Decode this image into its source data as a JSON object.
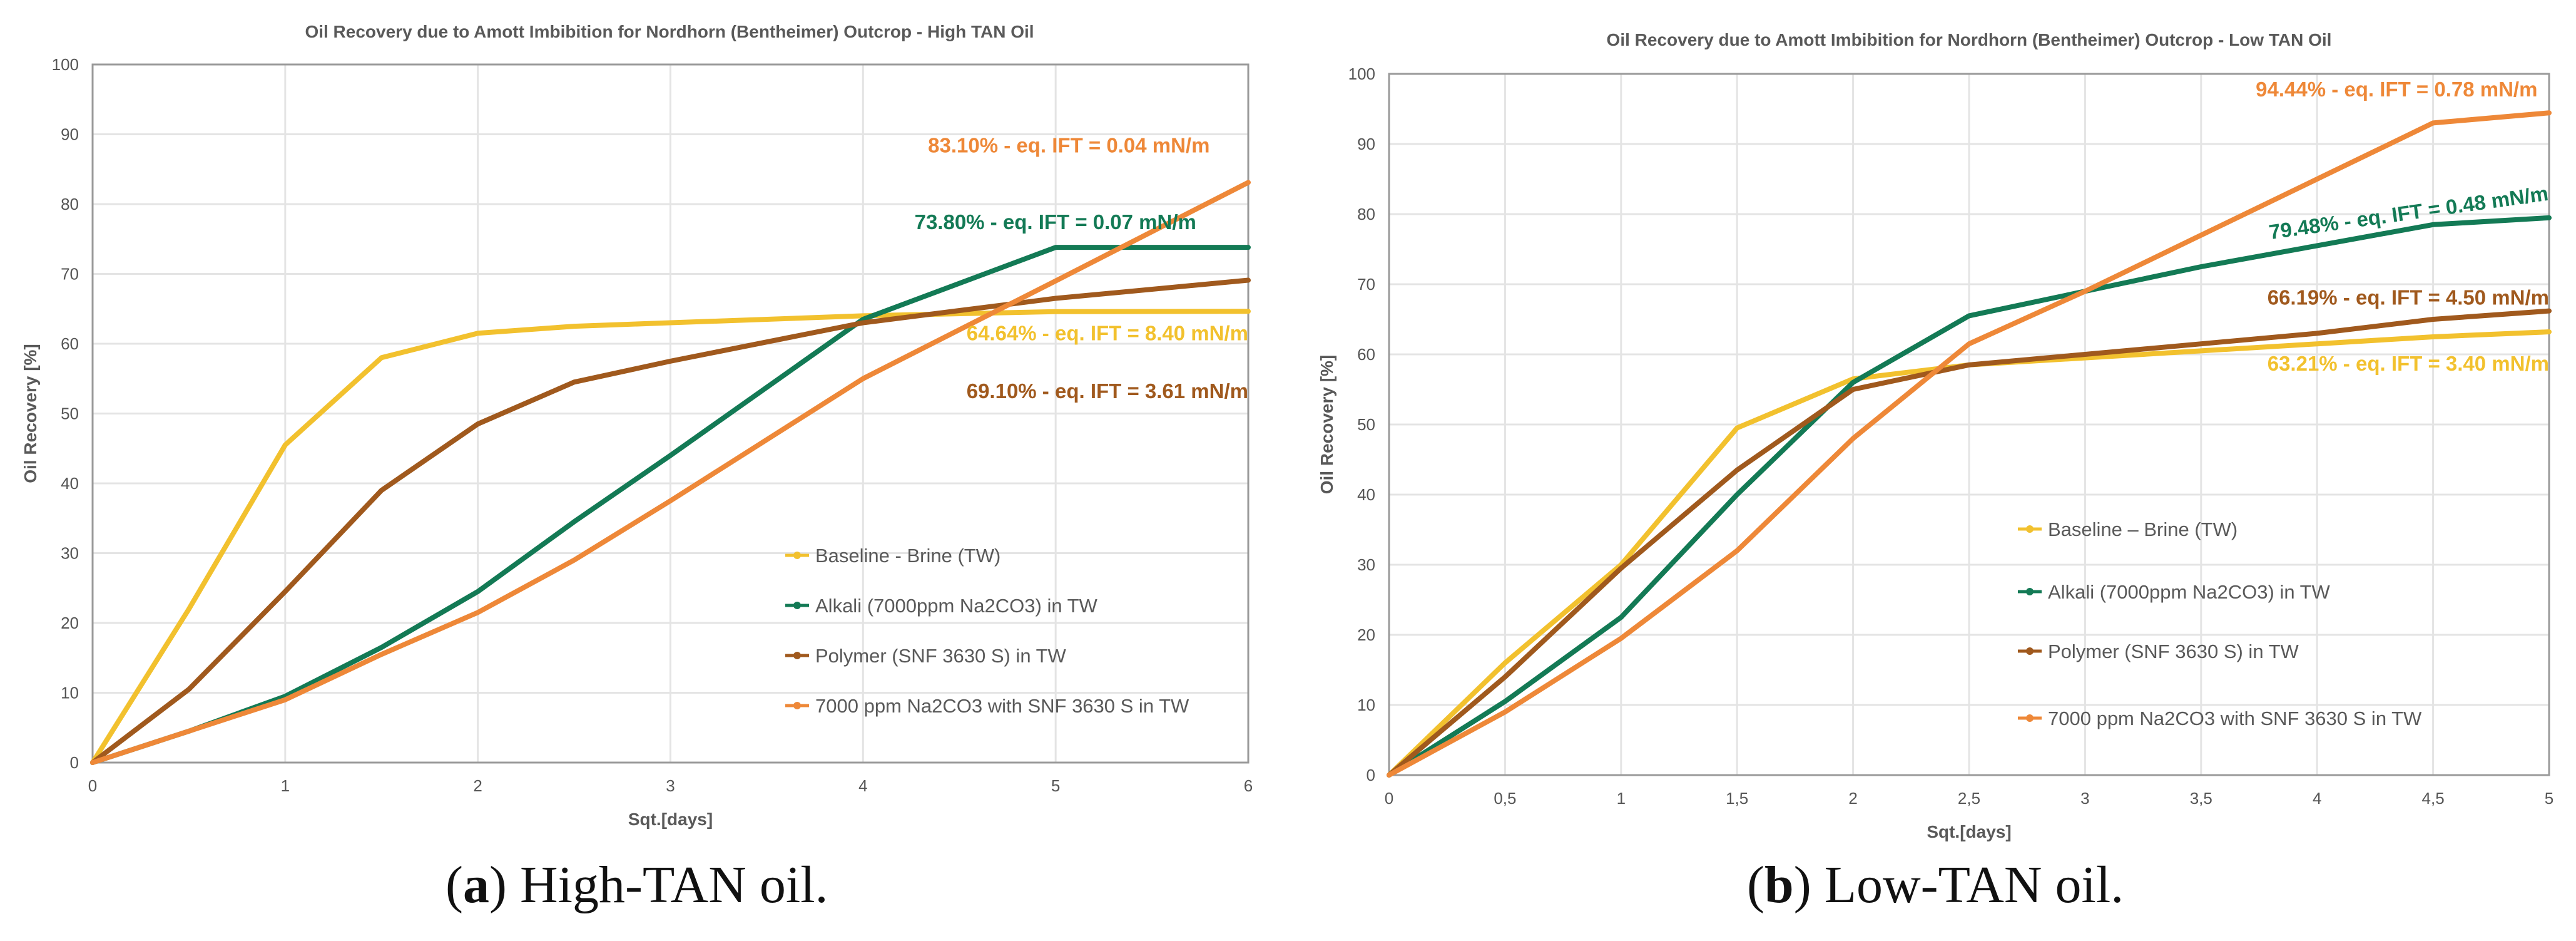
{
  "colors": {
    "baseline": "#f2c12e",
    "alkali": "#137a55",
    "polymer": "#a0591d",
    "combo": "#ee8838",
    "axis": "#9a9a9a",
    "grid": "#e4e4e4",
    "text": "#555555"
  },
  "captions": [
    {
      "letter": "a",
      "open": "(",
      "close": ")",
      "text": " High-TAN oil."
    },
    {
      "letter": "b",
      "open": "(",
      "close": ")",
      "text": " Low-TAN oil."
    }
  ],
  "chart_data": [
    {
      "type": "line",
      "title": "Oil Recovery due to Amott Imbibition for Nordhorn (Bentheimer) Outcrop - High TAN Oil",
      "xlabel": "Sqt.[days]",
      "ylabel": "Oil Recovery [%]",
      "xlim": [
        0,
        6
      ],
      "ylim": [
        0,
        100
      ],
      "xticks": [
        0,
        1,
        2,
        3,
        4,
        5,
        6
      ],
      "xtick_labels": [
        "0",
        "1",
        "2",
        "3",
        "4",
        "5",
        "6"
      ],
      "yticks": [
        0,
        10,
        20,
        30,
        40,
        50,
        60,
        70,
        80,
        90,
        100
      ],
      "ytick_labels": [
        "0",
        "10",
        "20",
        "30",
        "40",
        "50",
        "60",
        "70",
        "80",
        "90",
        "100"
      ],
      "grid": true,
      "legend_position": "bottom-right",
      "series": [
        {
          "name": "Baseline - Brine (TW)",
          "color_key": "baseline",
          "x": [
            0,
            0.5,
            1,
            1.5,
            2,
            2.5,
            3,
            4,
            5,
            6
          ],
          "y": [
            0,
            22,
            45.5,
            58,
            61.5,
            62.5,
            63,
            64,
            64.6,
            64.64
          ]
        },
        {
          "name": "Alkali (7000ppm Na2CO3) in TW",
          "color_key": "alkali",
          "x": [
            0,
            0.5,
            1,
            1.5,
            2,
            2.5,
            3,
            4,
            5,
            6
          ],
          "y": [
            0,
            4.5,
            9.5,
            16.5,
            24.5,
            34.5,
            44,
            63.5,
            73.8,
            73.8
          ]
        },
        {
          "name": "Polymer (SNF 3630 S) in TW",
          "color_key": "polymer",
          "x": [
            0,
            0.5,
            1,
            1.5,
            2,
            2.5,
            3,
            4,
            5,
            6
          ],
          "y": [
            0,
            10.5,
            24.5,
            39,
            48.5,
            54.5,
            57.5,
            63,
            66.5,
            69.1
          ]
        },
        {
          "name": "7000 ppm Na2CO3 with SNF 3630 S in TW",
          "color_key": "combo",
          "x": [
            0,
            0.5,
            1,
            1.5,
            2,
            2.5,
            3,
            4,
            5,
            6
          ],
          "y": [
            0,
            4.5,
            9,
            15.5,
            21.5,
            29,
            37.5,
            55,
            69,
            83.1
          ]
        }
      ],
      "annotations": [
        {
          "text": "83.10% - eq. IFT = 0.04 mN/m",
          "color_key": "combo",
          "x": 5.8,
          "y": 87.4,
          "anchor": "end"
        },
        {
          "text": "73.80% - eq. IFT = 0.07 mN/m",
          "color_key": "alkali",
          "x": 5.73,
          "y": 76.4,
          "anchor": "end"
        },
        {
          "text": "64.64% - eq. IFT = 8.40 mN/m",
          "color_key": "baseline",
          "x": 6.0,
          "y": 60.5,
          "anchor": "end"
        },
        {
          "text": "69.10% - eq. IFT = 3.61 mN/m",
          "color_key": "polymer",
          "x": 6.0,
          "y": 52.2,
          "anchor": "end"
        }
      ]
    },
    {
      "type": "line",
      "title": "Oil Recovery due to Amott Imbibition for Nordhorn (Bentheimer) Outcrop - Low TAN Oil",
      "xlabel": "Sqt.[days]",
      "ylabel": "Oil Recovery [%]",
      "xlim": [
        0,
        5
      ],
      "ylim": [
        0,
        100
      ],
      "xticks": [
        0,
        0.5,
        1,
        1.5,
        2,
        2.5,
        3,
        3.5,
        4,
        4.5,
        5
      ],
      "xtick_labels": [
        "0",
        "0,5",
        "1",
        "1,5",
        "2",
        "2,5",
        "3",
        "3,5",
        "4",
        "4,5",
        "5"
      ],
      "yticks": [
        0,
        10,
        20,
        30,
        40,
        50,
        60,
        70,
        80,
        90,
        100
      ],
      "ytick_labels": [
        "0",
        "10",
        "20",
        "30",
        "40",
        "50",
        "60",
        "70",
        "80",
        "90",
        "100"
      ],
      "grid": true,
      "legend_position": "bottom-right",
      "series": [
        {
          "name": "Baseline – Brine (TW)",
          "color_key": "baseline",
          "x": [
            0,
            0.5,
            1,
            1.5,
            2,
            2.5,
            3,
            3.5,
            4,
            4.5,
            5
          ],
          "y": [
            0,
            16,
            30,
            49.5,
            56.5,
            58.5,
            59.5,
            60.5,
            61.5,
            62.5,
            63.21
          ]
        },
        {
          "name": "Alkali (7000ppm Na2CO3) in TW",
          "color_key": "alkali",
          "x": [
            0,
            0.5,
            1,
            1.5,
            2,
            2.5,
            3,
            3.5,
            4,
            4.5,
            5
          ],
          "y": [
            0,
            10.5,
            22.5,
            40,
            56,
            65.5,
            69,
            72.5,
            75.5,
            78.5,
            79.48
          ]
        },
        {
          "name": "Polymer (SNF 3630 S) in TW",
          "color_key": "polymer",
          "x": [
            0,
            0.5,
            1,
            1.5,
            2,
            2.5,
            3,
            3.5,
            4,
            4.5,
            5
          ],
          "y": [
            0,
            14,
            29.5,
            43.5,
            55,
            58.5,
            60,
            61.5,
            63,
            65,
            66.19
          ]
        },
        {
          "name": "7000 ppm Na2CO3 with SNF 3630 S in TW",
          "color_key": "combo",
          "x": [
            0,
            0.5,
            1,
            1.5,
            2,
            2.5,
            3,
            3.5,
            4,
            4.5,
            5
          ],
          "y": [
            0,
            9,
            19.5,
            32,
            48,
            61.5,
            69,
            77,
            85,
            93,
            94.44
          ]
        }
      ],
      "annotations": [
        {
          "text": "94.44% - eq. IFT = 0.78 mN/m",
          "color_key": "combo",
          "x": 4.95,
          "y": 96.8,
          "anchor": "end"
        },
        {
          "text": "79.48% - eq. IFT = 0.48 mN/m",
          "color_key": "alkali",
          "x": 5.0,
          "y": 82.0,
          "anchor": "end",
          "rotate": -8
        },
        {
          "text": "66.19% - eq. IFT = 4.50 mN/m",
          "color_key": "polymer",
          "x": 5.0,
          "y": 67.1,
          "anchor": "end"
        },
        {
          "text": "63.21% - eq. IFT = 3.40 mN/m",
          "color_key": "baseline",
          "x": 5.0,
          "y": 57.7,
          "anchor": "end"
        }
      ]
    }
  ]
}
